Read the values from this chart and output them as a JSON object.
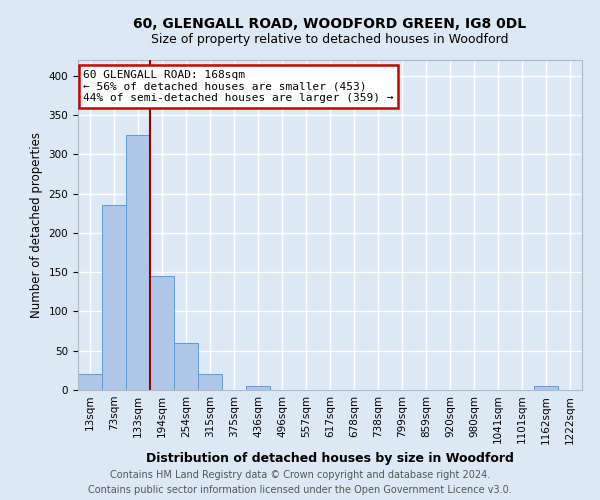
{
  "title": "60, GLENGALL ROAD, WOODFORD GREEN, IG8 0DL",
  "subtitle": "Size of property relative to detached houses in Woodford",
  "xlabel": "Distribution of detached houses by size in Woodford",
  "ylabel": "Number of detached properties",
  "categories": [
    "13sqm",
    "73sqm",
    "133sqm",
    "194sqm",
    "254sqm",
    "315sqm",
    "375sqm",
    "436sqm",
    "496sqm",
    "557sqm",
    "617sqm",
    "678sqm",
    "738sqm",
    "799sqm",
    "859sqm",
    "920sqm",
    "980sqm",
    "1041sqm",
    "1101sqm",
    "1162sqm",
    "1222sqm"
  ],
  "values": [
    20,
    235,
    325,
    145,
    60,
    20,
    0,
    5,
    0,
    0,
    0,
    0,
    0,
    0,
    0,
    0,
    0,
    0,
    0,
    5,
    0
  ],
  "bar_color": "#aec6e8",
  "bar_edge_color": "#5b9bd5",
  "annotation_text": "60 GLENGALL ROAD: 168sqm\n← 56% of detached houses are smaller (453)\n44% of semi-detached houses are larger (359) →",
  "annotation_box_color": "#ffffff",
  "annotation_box_edge_color": "#cc0000",
  "vline_color": "#990000",
  "vline_x": 2.5,
  "ylim": [
    0,
    420
  ],
  "yticks": [
    0,
    50,
    100,
    150,
    200,
    250,
    300,
    350,
    400
  ],
  "footer_line1": "Contains HM Land Registry data © Crown copyright and database right 2024.",
  "footer_line2": "Contains public sector information licensed under the Open Government Licence v3.0.",
  "bg_color": "#dde8f5",
  "plot_bg_color": "#dde8f5",
  "grid_color": "#ffffff",
  "title_fontsize": 10,
  "subtitle_fontsize": 9,
  "xlabel_fontsize": 9,
  "ylabel_fontsize": 8.5,
  "tick_fontsize": 7.5,
  "footer_fontsize": 7
}
